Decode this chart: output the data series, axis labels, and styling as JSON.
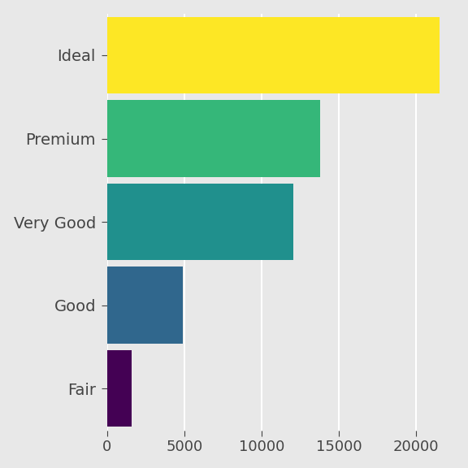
{
  "categories": [
    "Fair",
    "Good",
    "Very Good",
    "Premium",
    "Ideal"
  ],
  "values": [
    1610,
    4906,
    12082,
    13791,
    21551
  ],
  "bar_colors": [
    "#440154",
    "#30678d",
    "#35b779",
    "#20908d",
    "#fde725"
  ],
  "background_color": "#e8e8e8",
  "grid_color": "#ffffff",
  "xlim": [
    0,
    22500
  ],
  "xticks": [
    0,
    5000,
    10000,
    15000,
    20000
  ],
  "tick_label_fontsize": 13,
  "category_fontsize": 14,
  "bar_height": 0.92
}
